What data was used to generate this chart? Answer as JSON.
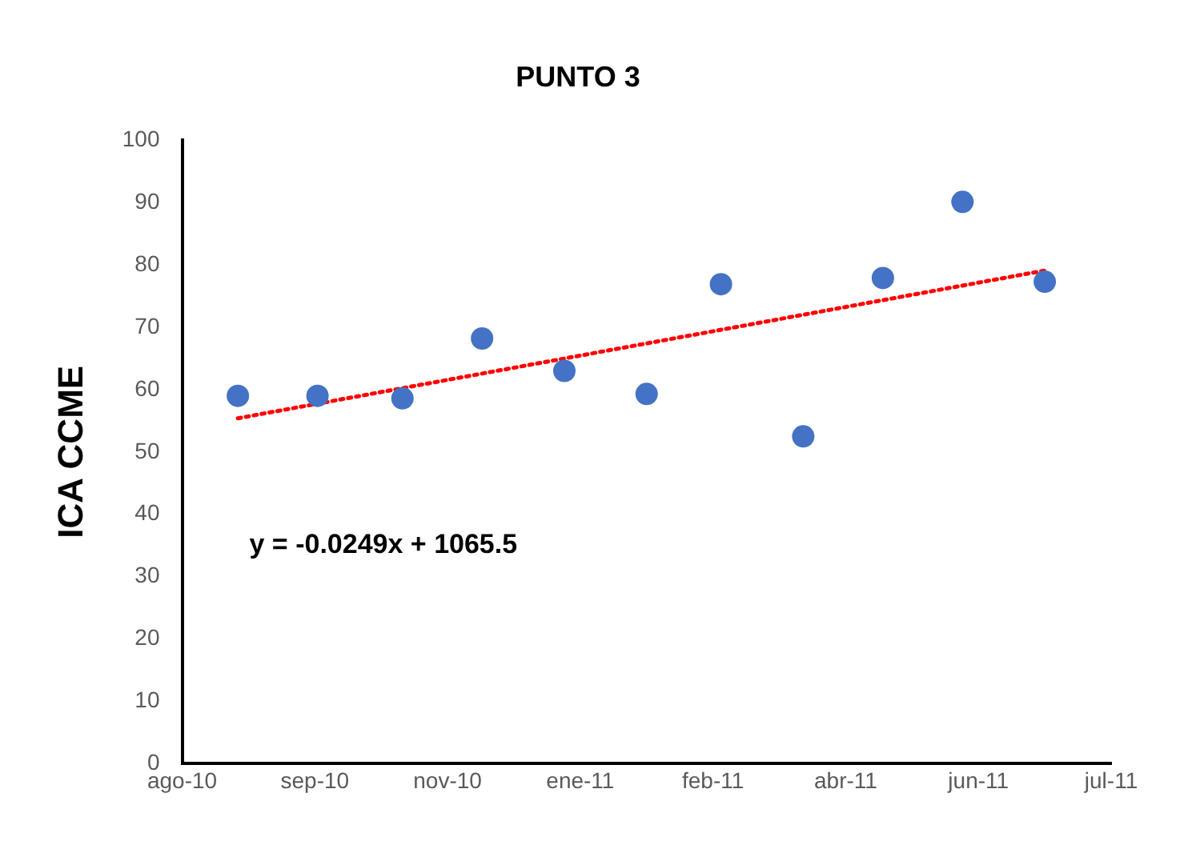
{
  "chart_data": {
    "type": "scatter",
    "title": "PUNTO 3",
    "ylabel": "ICA CCME",
    "series": [
      {
        "color": "#4472c4",
        "marker": "circle",
        "x": [
          "2010-08-28",
          "2010-09-27",
          "2010-10-29",
          "2010-11-28",
          "2010-12-29",
          "2011-01-29",
          "2011-02-26",
          "2011-03-29",
          "2011-04-28",
          "2011-05-28",
          "2011-06-28"
        ],
        "values": [
          59,
          59,
          58.6,
          68.2,
          63,
          59.3,
          76.9,
          52.5,
          77.9,
          90.1,
          77.3
        ]
      },
      {
        "type": "line",
        "color": "#ff0000",
        "marker": "none",
        "line_style": "dotted",
        "x": [
          "2010-08-28",
          "2011-06-28"
        ],
        "values": [
          55.4,
          79.1
        ]
      }
    ],
    "xlim": [
      "2010-08-07",
      "2011-07-23"
    ],
    "xticks": [
      {
        "value": "2010-08-07",
        "label": "ago-10"
      },
      {
        "value": "2010-09-26",
        "label": "sep-10"
      },
      {
        "value": "2010-11-15",
        "label": "nov-10"
      },
      {
        "value": "2011-01-04",
        "label": "ene-11"
      },
      {
        "value": "2011-02-23",
        "label": "feb-11"
      },
      {
        "value": "2011-04-14",
        "label": "abr-11"
      },
      {
        "value": "2011-06-03",
        "label": "jun-11"
      },
      {
        "value": "2011-07-23",
        "label": "jul-11"
      }
    ],
    "ylim": [
      0,
      100
    ],
    "yticks": [
      0,
      10,
      20,
      30,
      40,
      50,
      60,
      70,
      80,
      90,
      100
    ],
    "grid": false,
    "legend": false,
    "annotations": [
      "y = -0.0249x + 1065.5"
    ]
  }
}
